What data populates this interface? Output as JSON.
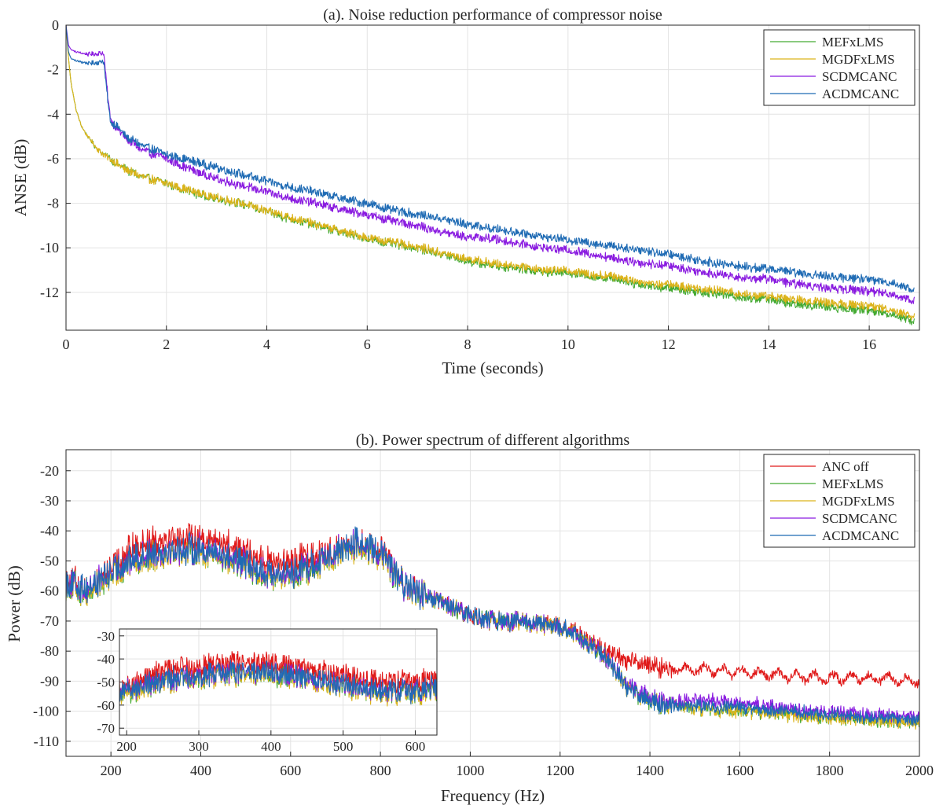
{
  "chart_data": [
    {
      "type": "line",
      "title": "(a). Noise reduction performance of compressor noise",
      "xlabel": "Time (seconds)",
      "ylabel": "ANSE (dB)",
      "xlim": [
        0,
        17
      ],
      "ylim": [
        -13.7,
        0
      ],
      "xticks": [
        0,
        2,
        4,
        6,
        8,
        10,
        12,
        14,
        16
      ],
      "yticks": [
        0,
        -2,
        -4,
        -6,
        -8,
        -10,
        -12
      ],
      "grid": true,
      "legend_position": "top-right",
      "x": [
        0,
        0.05,
        0.1,
        0.2,
        0.3,
        0.4,
        0.5,
        0.6,
        0.7,
        0.75,
        0.85,
        0.9,
        1.0,
        1.2,
        1.5,
        2.0,
        2.5,
        3.0,
        3.5,
        4.0,
        4.5,
        5.0,
        5.5,
        6.0,
        6.5,
        7.0,
        7.5,
        8.0,
        8.5,
        9.0,
        9.5,
        10.0,
        10.5,
        11.0,
        11.5,
        12.0,
        12.5,
        13.0,
        13.5,
        14.0,
        14.5,
        15.0,
        15.5,
        16.0,
        16.5,
        16.9
      ],
      "series": [
        {
          "name": "MEFxLMS",
          "color": "#44aa33",
          "values": [
            0,
            -1.5,
            -2.6,
            -3.8,
            -4.5,
            -4.9,
            -5.2,
            -5.5,
            -5.7,
            -5.8,
            -5.95,
            -6.05,
            -6.2,
            -6.5,
            -6.8,
            -7.1,
            -7.5,
            -7.8,
            -8.0,
            -8.4,
            -8.7,
            -9.0,
            -9.3,
            -9.6,
            -9.8,
            -10.0,
            -10.3,
            -10.6,
            -10.8,
            -10.9,
            -11.1,
            -11.1,
            -11.3,
            -11.4,
            -11.7,
            -11.8,
            -11.95,
            -12.05,
            -12.25,
            -12.3,
            -12.55,
            -12.6,
            -12.75,
            -12.8,
            -13.0,
            -13.3
          ]
        },
        {
          "name": "MGDFxLMS",
          "color": "#dcb31a",
          "values": [
            0,
            -1.5,
            -2.6,
            -3.8,
            -4.5,
            -4.9,
            -5.2,
            -5.5,
            -5.7,
            -5.8,
            -5.95,
            -6.05,
            -6.2,
            -6.5,
            -6.8,
            -7.1,
            -7.45,
            -7.75,
            -8.0,
            -8.35,
            -8.65,
            -8.95,
            -9.25,
            -9.55,
            -9.75,
            -9.95,
            -10.25,
            -10.5,
            -10.7,
            -10.8,
            -11.0,
            -11.0,
            -11.2,
            -11.3,
            -11.55,
            -11.65,
            -11.8,
            -11.9,
            -12.1,
            -12.15,
            -12.35,
            -12.4,
            -12.55,
            -12.6,
            -12.8,
            -13.1
          ]
        },
        {
          "name": "SCDMCANC",
          "color": "#8a1be0",
          "values": [
            0,
            -0.9,
            -1.1,
            -1.2,
            -1.25,
            -1.3,
            -1.3,
            -1.3,
            -1.25,
            -1.25,
            -3.6,
            -4.3,
            -4.6,
            -5.1,
            -5.6,
            -6.0,
            -6.5,
            -6.9,
            -7.2,
            -7.5,
            -7.8,
            -8.0,
            -8.3,
            -8.5,
            -8.8,
            -9.0,
            -9.3,
            -9.5,
            -9.6,
            -9.8,
            -10.0,
            -10.1,
            -10.3,
            -10.5,
            -10.7,
            -10.8,
            -11.0,
            -11.2,
            -11.35,
            -11.4,
            -11.6,
            -11.75,
            -11.85,
            -11.95,
            -12.1,
            -12.4
          ]
        },
        {
          "name": "ACDMCANC",
          "color": "#1f6bb4",
          "values": [
            0,
            -1.2,
            -1.5,
            -1.6,
            -1.65,
            -1.7,
            -1.7,
            -1.7,
            -1.65,
            -1.6,
            -3.8,
            -4.4,
            -4.5,
            -5.0,
            -5.4,
            -5.8,
            -6.1,
            -6.4,
            -6.7,
            -7.0,
            -7.3,
            -7.5,
            -7.8,
            -8.0,
            -8.3,
            -8.5,
            -8.7,
            -8.95,
            -9.15,
            -9.3,
            -9.5,
            -9.65,
            -9.8,
            -9.95,
            -10.1,
            -10.3,
            -10.5,
            -10.7,
            -10.85,
            -10.95,
            -11.1,
            -11.25,
            -11.35,
            -11.4,
            -11.6,
            -11.9
          ]
        }
      ]
    },
    {
      "type": "line",
      "title": "(b). Power spectrum of different algorithms",
      "xlabel": "Frequency (Hz)",
      "ylabel": "Power (dB)",
      "xlim": [
        100,
        2000
      ],
      "ylim": [
        -115,
        -13
      ],
      "xticks": [
        200,
        400,
        600,
        800,
        1000,
        1200,
        1400,
        1600,
        1800,
        2000
      ],
      "yticks": [
        -20,
        -30,
        -40,
        -50,
        -60,
        -70,
        -80,
        -90,
        -100,
        -110
      ],
      "grid": true,
      "legend_position": "top-right",
      "x": [
        100,
        150,
        200,
        250,
        300,
        350,
        400,
        450,
        500,
        550,
        600,
        650,
        700,
        750,
        800,
        850,
        900,
        950,
        1000,
        1050,
        1100,
        1150,
        1200,
        1250,
        1300,
        1350,
        1400,
        1450,
        1500,
        1600,
        1700,
        1800,
        1900,
        2000
      ],
      "series": [
        {
          "name": "ANC off",
          "color": "#e01a1a",
          "values": [
            -55,
            -60,
            -52,
            -45,
            -43,
            -42,
            -42,
            -44,
            -47,
            -50,
            -50,
            -48,
            -46,
            -44,
            -46,
            -58,
            -62,
            -65,
            -68,
            -70,
            -70,
            -71,
            -72,
            -75,
            -80,
            -83,
            -85,
            -86,
            -86,
            -87,
            -88,
            -89,
            -89,
            -90
          ]
        },
        {
          "name": "MEFxLMS",
          "color": "#44aa33",
          "values": [
            -58,
            -60,
            -55,
            -50,
            -48,
            -47,
            -47,
            -49,
            -52,
            -55,
            -55,
            -52,
            -48,
            -45,
            -48,
            -58,
            -62,
            -65,
            -68,
            -70,
            -70,
            -71,
            -72,
            -76,
            -82,
            -92,
            -97,
            -98,
            -99,
            -100,
            -101,
            -102,
            -103,
            -104
          ]
        },
        {
          "name": "MGDFxLMS",
          "color": "#dcb31a",
          "values": [
            -58,
            -60,
            -55,
            -50,
            -48,
            -47,
            -47,
            -49,
            -52,
            -55,
            -55,
            -52,
            -48,
            -45,
            -48,
            -58,
            -62,
            -65,
            -68,
            -70,
            -70,
            -71,
            -72,
            -76,
            -82,
            -92,
            -97,
            -98,
            -99,
            -100,
            -101,
            -102,
            -103,
            -104
          ]
        },
        {
          "name": "SCDMCANC",
          "color": "#8a1be0",
          "values": [
            -57,
            -59,
            -54,
            -49,
            -47,
            -46,
            -46,
            -48,
            -51,
            -54,
            -54,
            -51,
            -47,
            -44,
            -47,
            -58,
            -62,
            -65,
            -68,
            -70,
            -70,
            -71,
            -72,
            -76,
            -82,
            -91,
            -96,
            -97,
            -96,
            -97,
            -99,
            -100,
            -101,
            -102
          ]
        },
        {
          "name": "ACDMCANC",
          "color": "#1f6bb4",
          "values": [
            -57,
            -59,
            -54,
            -49,
            -47,
            -46,
            -46,
            -48,
            -51,
            -54,
            -54,
            -51,
            -47,
            -44,
            -47,
            -58,
            -62,
            -65,
            -68,
            -70,
            -70,
            -71,
            -72,
            -76,
            -82,
            -92,
            -97,
            -98,
            -98,
            -99,
            -100,
            -101,
            -102,
            -103
          ]
        }
      ],
      "inset": {
        "xlim": [
          190,
          630
        ],
        "ylim": [
          -73,
          -27
        ],
        "xticks": [
          200,
          300,
          400,
          500,
          600
        ],
        "yticks": [
          -30,
          -40,
          -50,
          -60,
          -70
        ]
      }
    }
  ]
}
